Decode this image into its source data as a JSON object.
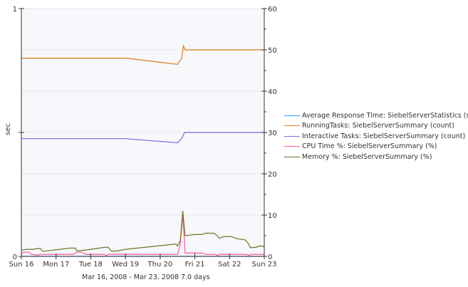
{
  "chart_data": {
    "type": "line",
    "ylabel": "sec",
    "left_axis": {
      "range": [
        0,
        1
      ],
      "ticks": [
        "0",
        "1"
      ]
    },
    "right_axis": {
      "range": [
        0,
        60
      ],
      "ticks": [
        "0",
        "10",
        "20",
        "30",
        "40",
        "50",
        "60"
      ]
    },
    "x_range_days": [
      0,
      7
    ],
    "x_ticks": [
      "Sun 16",
      "Mon 17",
      "Tue 18",
      "Wed 19",
      "Thu 20",
      "Fri 21",
      "Sat 22",
      "Sun 23"
    ],
    "date_range": "Mar 16, 2008 - Mar 23, 2008  7.0 days",
    "series": [
      {
        "name": "Average Response Time: SiebelServerStatistics (sec)",
        "color": "#3399ff",
        "axis": "left",
        "points": [
          [
            0,
            0
          ],
          [
            7,
            0
          ]
        ]
      },
      {
        "name": "RunningTasks: SiebelServerSummary (count)",
        "color": "#e07b1a",
        "axis": "right",
        "points": [
          [
            0,
            48
          ],
          [
            3,
            48
          ],
          [
            4.5,
            46.5
          ],
          [
            4.62,
            48
          ],
          [
            4.67,
            51
          ],
          [
            4.72,
            50
          ],
          [
            7,
            50
          ]
        ]
      },
      {
        "name": "Interactive Tasks: SiebelServerSummary (count)",
        "color": "#8866dd",
        "axis": "right",
        "points": [
          [
            0,
            28.5
          ],
          [
            3,
            28.5
          ],
          [
            4.5,
            27.5
          ],
          [
            4.62,
            28.5
          ],
          [
            4.7,
            30
          ],
          [
            7,
            30
          ]
        ]
      },
      {
        "name": "CPU Time %: SiebelServerSummary (%)",
        "color": "#ff5599",
        "axis": "right",
        "points": [
          [
            0,
            0.5
          ],
          [
            0.05,
            1
          ],
          [
            0.2,
            1
          ],
          [
            0.3,
            0.5
          ],
          [
            0.5,
            0.3
          ],
          [
            0.55,
            0.5
          ],
          [
            1.5,
            0.5
          ],
          [
            1.6,
            1
          ],
          [
            1.75,
            1
          ],
          [
            1.85,
            0.5
          ],
          [
            2.4,
            0.5
          ],
          [
            2.45,
            0.2
          ],
          [
            2.5,
            0.5
          ],
          [
            4.5,
            0.5
          ],
          [
            4.58,
            3
          ],
          [
            4.65,
            10
          ],
          [
            4.72,
            0.8
          ],
          [
            5.2,
            0.8
          ],
          [
            5.3,
            0.5
          ],
          [
            5.6,
            0.5
          ],
          [
            5.65,
            0.2
          ],
          [
            5.7,
            0.5
          ],
          [
            6.5,
            0.5
          ],
          [
            6.55,
            0.2
          ],
          [
            6.6,
            0.5
          ],
          [
            7,
            0.5
          ]
        ]
      },
      {
        "name": "Memory %: SiebelServerSummary (%)",
        "color": "#667722",
        "axis": "right",
        "points": [
          [
            0,
            1.5
          ],
          [
            0.15,
            1.7
          ],
          [
            0.35,
            1.7
          ],
          [
            0.45,
            1.9
          ],
          [
            0.55,
            1.9
          ],
          [
            0.62,
            1.2
          ],
          [
            1,
            1.6
          ],
          [
            1.4,
            2
          ],
          [
            1.55,
            2
          ],
          [
            1.6,
            1.3
          ],
          [
            2,
            1.7
          ],
          [
            2.4,
            2.2
          ],
          [
            2.5,
            2.2
          ],
          [
            2.6,
            1.2
          ],
          [
            2.8,
            1.4
          ],
          [
            3,
            1.7
          ],
          [
            4.45,
            3
          ],
          [
            4.5,
            2.5
          ],
          [
            4.58,
            3.8
          ],
          [
            4.65,
            11
          ],
          [
            4.72,
            5
          ],
          [
            5,
            5.3
          ],
          [
            5.2,
            5.3
          ],
          [
            5.3,
            5.6
          ],
          [
            5.55,
            5.6
          ],
          [
            5.65,
            5
          ],
          [
            5.7,
            4.4
          ],
          [
            5.85,
            4.8
          ],
          [
            6.05,
            4.8
          ],
          [
            6.2,
            4.3
          ],
          [
            6.45,
            4
          ],
          [
            6.55,
            3
          ],
          [
            6.6,
            2.1
          ],
          [
            6.75,
            2.2
          ],
          [
            6.85,
            2.5
          ],
          [
            6.95,
            2.5
          ],
          [
            7,
            2.3
          ]
        ]
      }
    ]
  }
}
